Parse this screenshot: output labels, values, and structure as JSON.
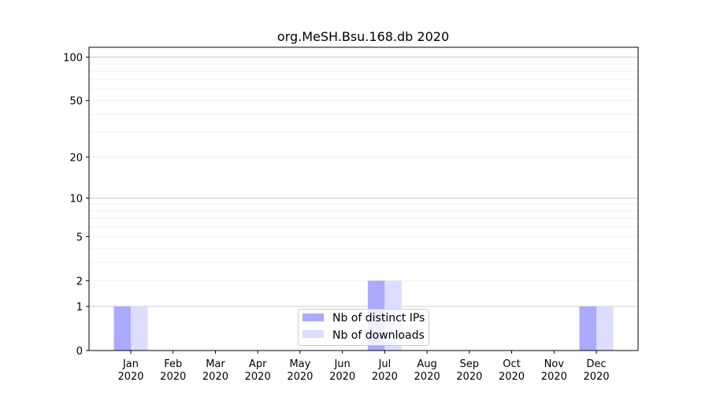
{
  "chart_data": {
    "type": "bar",
    "title": "org.MeSH.Bsu.168.db 2020",
    "xlabel": "",
    "ylabel": "",
    "yscale": "log(1+y)",
    "ylim": [
      0,
      117
    ],
    "yticks": [
      0,
      1,
      2,
      5,
      10,
      20,
      50,
      100
    ],
    "grid": true,
    "legend_position": "lower-center",
    "categories": [
      "Jan\n2020",
      "Feb\n2020",
      "Mar\n2020",
      "Apr\n2020",
      "May\n2020",
      "Jun\n2020",
      "Jul\n2020",
      "Aug\n2020",
      "Sep\n2020",
      "Oct\n2020",
      "Nov\n2020",
      "Dec\n2020"
    ],
    "series": [
      {
        "name": "Nb of distinct IPs",
        "color": "#aaaaff",
        "values": [
          1,
          0,
          0,
          0,
          0,
          0,
          2,
          0,
          0,
          0,
          0,
          1
        ]
      },
      {
        "name": "Nb of downloads",
        "color": "#ddddff",
        "values": [
          1,
          0,
          0,
          0,
          0,
          0,
          2,
          0,
          0,
          0,
          0,
          1
        ]
      }
    ]
  }
}
